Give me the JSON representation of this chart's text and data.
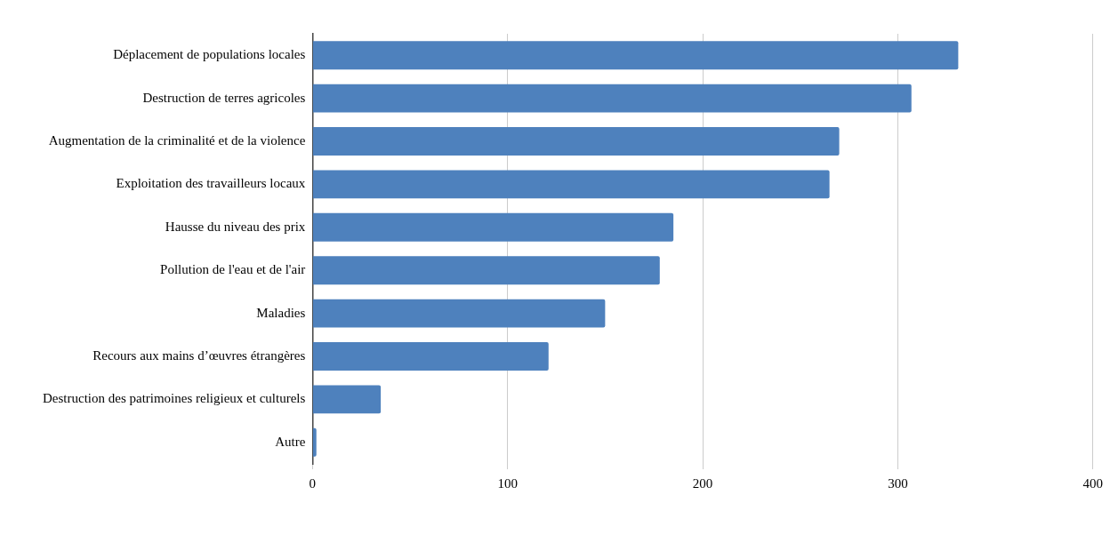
{
  "chart_data": {
    "type": "bar",
    "orientation": "horizontal",
    "categories": [
      "Déplacement de populations locales",
      "Destruction de terres agricoles",
      "Augmentation de la criminalité et de la violence",
      "Exploitation des travailleurs locaux",
      "Hausse du niveau des prix",
      "Pollution de l'eau et de l'air",
      "Maladies",
      "Recours aux mains d’œuvres étrangères",
      "Destruction des patrimoines religieux et culturels",
      "Autre"
    ],
    "values": [
      331,
      307,
      270,
      265,
      185,
      178,
      150,
      121,
      35,
      2
    ],
    "color": "#4e81bd",
    "xlim": [
      0,
      400
    ],
    "xticks": [
      0,
      100,
      200,
      300,
      400
    ],
    "grid": "x"
  }
}
